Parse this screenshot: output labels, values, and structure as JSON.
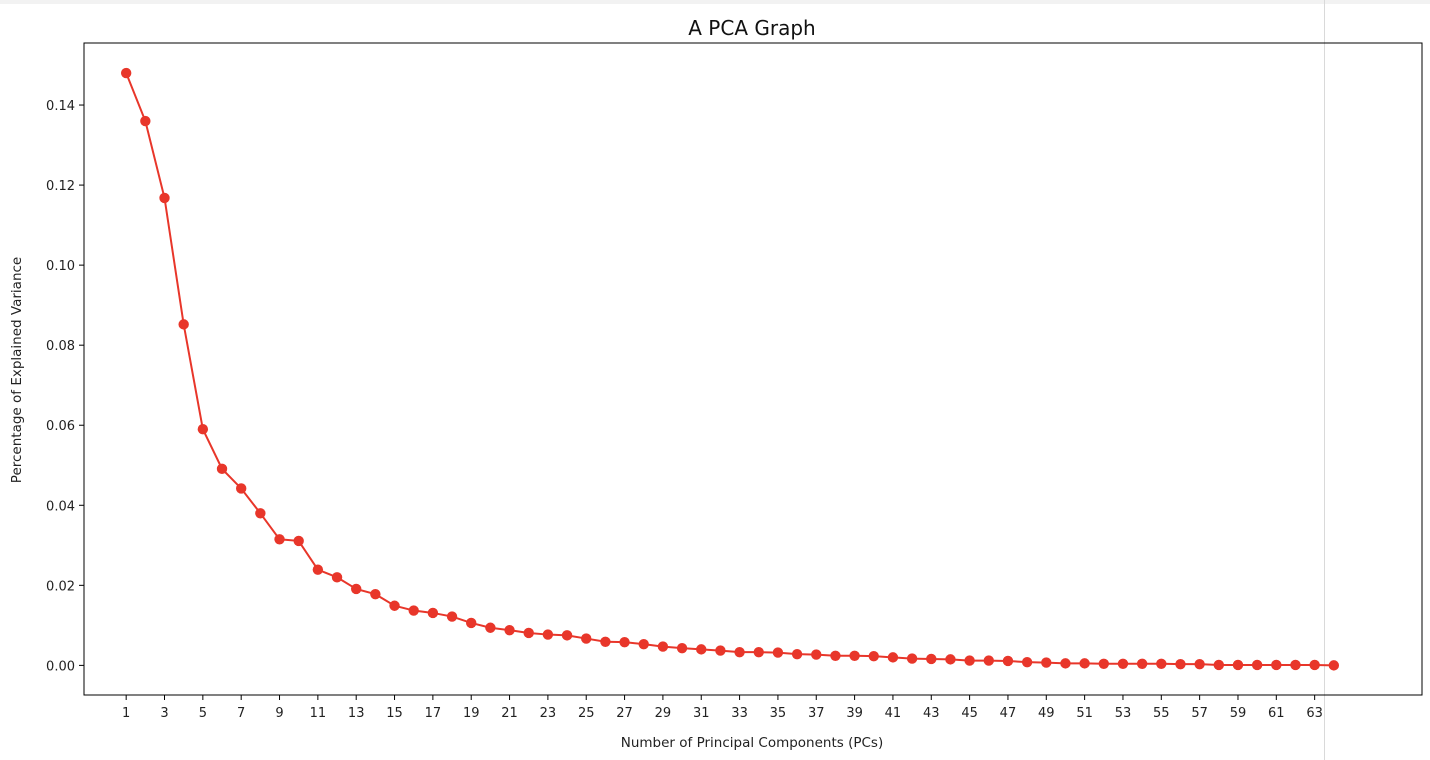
{
  "chart_data": {
    "type": "line",
    "title": "A PCA Graph",
    "xlabel": "Number of Principal Components (PCs)",
    "ylabel": "Percentage of Explained Variance",
    "x_ticks": [
      1,
      3,
      5,
      7,
      9,
      11,
      13,
      15,
      17,
      19,
      21,
      23,
      25,
      27,
      29,
      31,
      33,
      35,
      37,
      39,
      41,
      43,
      45,
      47,
      49,
      51,
      53,
      55,
      57,
      59,
      61,
      63
    ],
    "y_ticks": [
      0.0,
      0.02,
      0.04,
      0.06,
      0.08,
      0.1,
      0.12,
      0.14
    ],
    "y_tick_labels": [
      "0.00",
      "0.02",
      "0.04",
      "0.06",
      "0.08",
      "0.10",
      "0.12",
      "0.14"
    ],
    "xlim": [
      -1.2,
      68.6
    ],
    "ylim": [
      -0.0074,
      0.1555
    ],
    "grid": false,
    "colors": {
      "series": "#e8362a",
      "axes": "#000000"
    },
    "x": [
      1,
      2,
      3,
      4,
      5,
      6,
      7,
      8,
      9,
      10,
      11,
      12,
      13,
      14,
      15,
      16,
      17,
      18,
      19,
      20,
      21,
      22,
      23,
      24,
      25,
      26,
      27,
      28,
      29,
      30,
      31,
      32,
      33,
      34,
      35,
      36,
      37,
      38,
      39,
      40,
      41,
      42,
      43,
      44,
      45,
      46,
      47,
      48,
      49,
      50,
      51,
      52,
      53,
      54,
      55,
      56,
      57,
      58,
      59,
      60,
      61,
      62,
      63,
      64
    ],
    "series": [
      {
        "values": [
          0.148,
          0.136,
          0.1168,
          0.0852,
          0.059,
          0.0491,
          0.0442,
          0.038,
          0.0315,
          0.0311,
          0.0239,
          0.022,
          0.0191,
          0.0178,
          0.0149,
          0.0137,
          0.0131,
          0.0122,
          0.0106,
          0.0094,
          0.0088,
          0.0081,
          0.0077,
          0.0075,
          0.0067,
          0.0059,
          0.0058,
          0.0053,
          0.0047,
          0.0043,
          0.004,
          0.0037,
          0.0033,
          0.0033,
          0.0032,
          0.0028,
          0.0027,
          0.0024,
          0.0024,
          0.0023,
          0.002,
          0.0017,
          0.0016,
          0.0015,
          0.0012,
          0.0012,
          0.0011,
          0.0008,
          0.0007,
          0.0005,
          0.0005,
          0.0004,
          0.0004,
          0.0004,
          0.0004,
          0.0003,
          0.0003,
          0.0001,
          0.0001,
          0.0001,
          0.0001,
          0.0001,
          0.0001,
          0.0
        ]
      }
    ]
  }
}
